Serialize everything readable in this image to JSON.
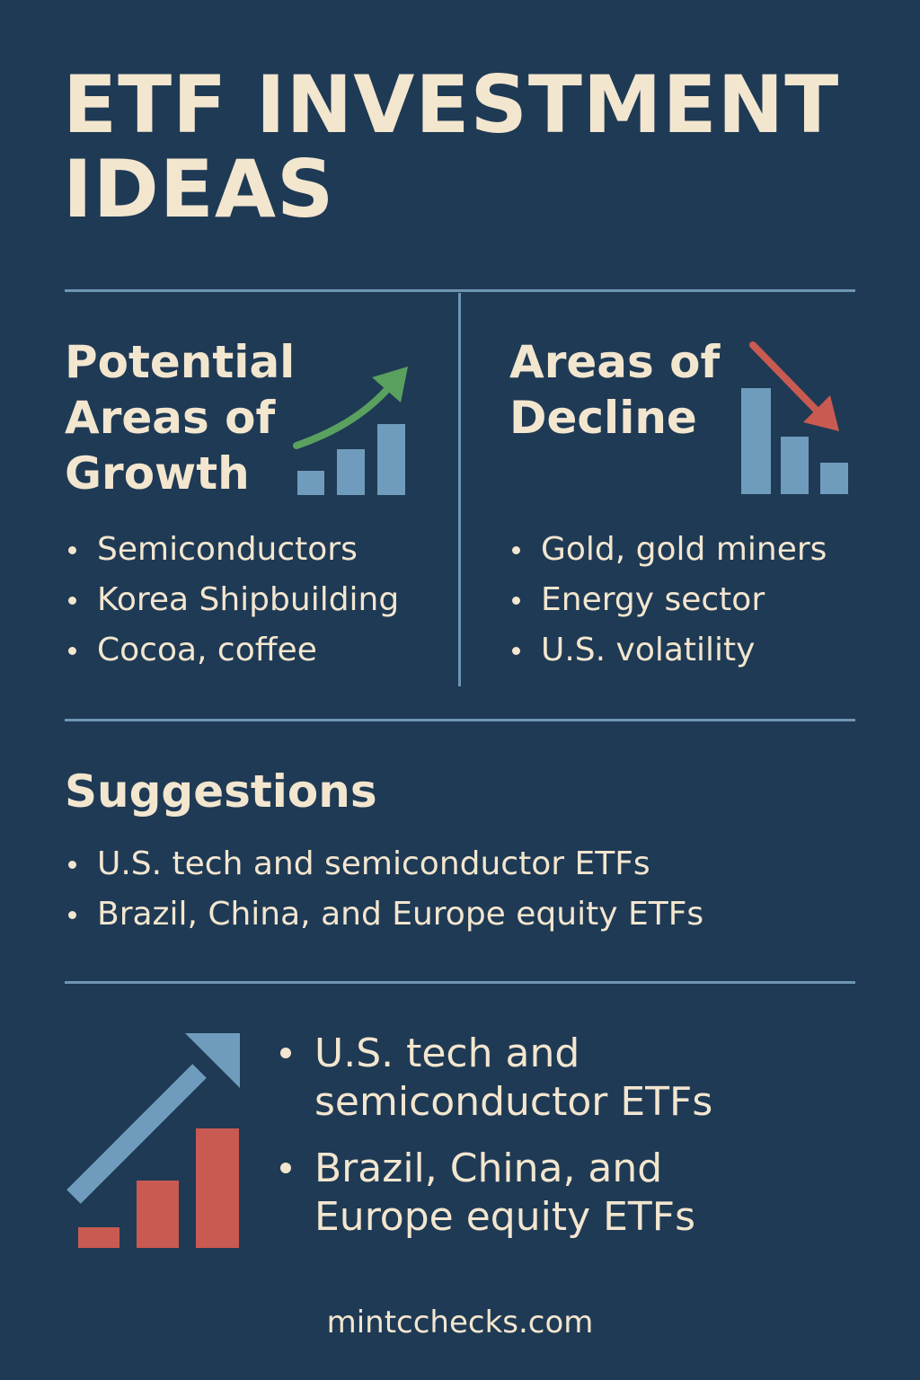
{
  "title": {
    "line1": "ETF INVESTMENT",
    "line2": "IDEAS"
  },
  "growth": {
    "heading": [
      "Potential",
      "Areas of",
      "Growth"
    ],
    "items": [
      "Semiconductors",
      "Korea Shipbuilding",
      "Cocoa, coffee"
    ]
  },
  "decline": {
    "heading": [
      "Areas of",
      "Decline"
    ],
    "items": [
      "Gold, gold miners",
      "Energy sector",
      "U.S. volatility"
    ]
  },
  "suggestions": {
    "heading": "Suggestions",
    "items": [
      "U.S. tech and semiconductor ETFs",
      "Brazil, China, and Europe equity ETFs"
    ]
  },
  "highlight": {
    "items": [
      [
        "U.S. tech and",
        "semiconductor ETFs"
      ],
      [
        "Brazil, China, and",
        "Europe equity ETFs"
      ]
    ]
  },
  "footer": "mintcchecks.com",
  "icons": {
    "growth": "growth-bar-chart-icon",
    "decline": "decline-bar-chart-icon",
    "highlight": "rising-bar-chart-icon"
  },
  "colors": {
    "background": "#1f3a55",
    "text": "#f3e6cf",
    "rule": "#6f96b4",
    "bar_blue": "#6f9cbd",
    "arrow_green": "#5aa15f",
    "arrow_red": "#c95a52",
    "bar_red": "#c95a52"
  }
}
